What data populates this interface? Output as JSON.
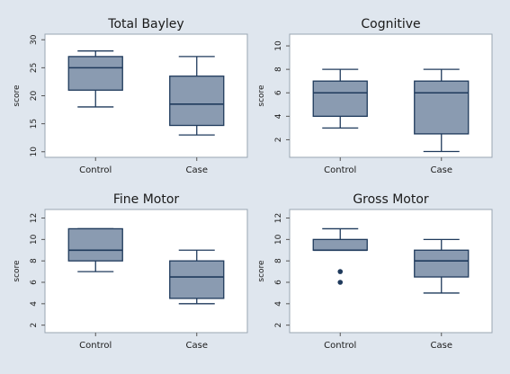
{
  "chart_data": [
    {
      "type": "boxplot",
      "title": "Total Bayley",
      "ylabel": "score",
      "ylim": [
        9,
        31
      ],
      "yticks": [
        10,
        15,
        20,
        25,
        30
      ],
      "categories": [
        "Control",
        "Case"
      ],
      "boxes": [
        {
          "whisker_low": 18,
          "q1": 21,
          "median": 25,
          "q3": 27,
          "whisker_high": 28,
          "outliers": []
        },
        {
          "whisker_low": 13,
          "q1": 14.7,
          "median": 18.5,
          "q3": 23.5,
          "whisker_high": 27,
          "outliers": []
        }
      ]
    },
    {
      "type": "boxplot",
      "title": "Cognitive",
      "ylabel": "score",
      "ylim": [
        0.5,
        11
      ],
      "yticks": [
        2,
        4,
        6,
        8,
        10
      ],
      "categories": [
        "Control",
        "Case"
      ],
      "boxes": [
        {
          "whisker_low": 3,
          "q1": 4,
          "median": 6,
          "q3": 7,
          "whisker_high": 8,
          "outliers": []
        },
        {
          "whisker_low": 1,
          "q1": 2.5,
          "median": 6,
          "q3": 7,
          "whisker_high": 8,
          "outliers": []
        }
      ]
    },
    {
      "type": "boxplot",
      "title": "Fine Motor",
      "ylabel": "score",
      "ylim": [
        1.3,
        12.8
      ],
      "yticks": [
        2,
        4,
        6,
        8,
        10,
        12
      ],
      "categories": [
        "Control",
        "Case"
      ],
      "boxes": [
        {
          "whisker_low": 7,
          "q1": 8,
          "median": 9,
          "q3": 11,
          "whisker_high": 11,
          "outliers": []
        },
        {
          "whisker_low": 4,
          "q1": 4.5,
          "median": 6.5,
          "q3": 8,
          "whisker_high": 9,
          "outliers": []
        }
      ]
    },
    {
      "type": "boxplot",
      "title": "Gross Motor",
      "ylabel": "score",
      "ylim": [
        1.3,
        12.8
      ],
      "yticks": [
        2,
        4,
        6,
        8,
        10,
        12
      ],
      "categories": [
        "Control",
        "Case"
      ],
      "boxes": [
        {
          "whisker_low": 9,
          "q1": 9,
          "median": 9,
          "q3": 10,
          "whisker_high": 11,
          "outliers": [
            7,
            6
          ]
        },
        {
          "whisker_low": 5,
          "q1": 6.5,
          "median": 8,
          "q3": 9,
          "whisker_high": 10,
          "outliers": []
        }
      ]
    }
  ],
  "colors": {
    "background": "#dfe6ee",
    "plot_area": "#ffffff",
    "box_fill": "#8a9bb1",
    "box_stroke": "#1f3a5c",
    "whisker": "#1f3a5c",
    "outlier": "#1f3a5c"
  }
}
